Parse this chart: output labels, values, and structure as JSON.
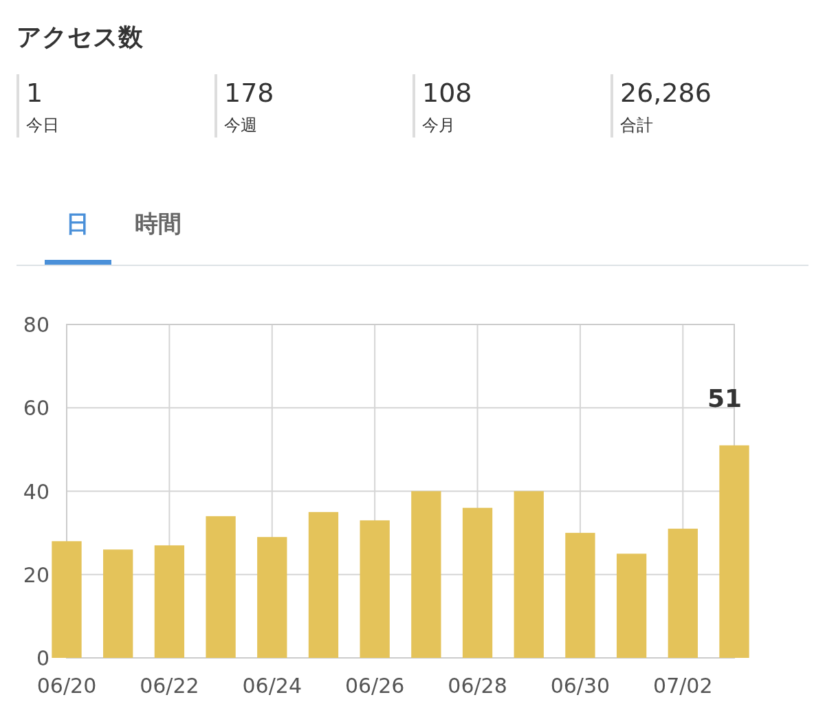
{
  "chart_data": {
    "type": "bar",
    "title": "アクセス数",
    "annotations": [
      "1",
      "今日",
      "178",
      "今週",
      "108",
      "今月",
      "26,286",
      "合計",
      "日",
      "時間"
    ],
    "x": [
      "--06-20",
      "--06-21",
      "--06-22",
      "--06-23",
      "--06-24",
      "--06-25",
      "--06-26",
      "--06-27",
      "--06-28",
      "--06-29",
      "--06-30",
      "--07-01",
      "--07-02",
      "--07-03"
    ],
    "values": [
      28,
      26,
      27,
      34,
      29,
      35,
      33,
      40,
      36,
      40,
      30,
      25,
      31,
      51
    ],
    "value_labels": [
      null,
      null,
      null,
      null,
      null,
      null,
      null,
      null,
      null,
      null,
      null,
      null,
      null,
      "51"
    ],
    "color": "#e4c35a",
    "xlim": [
      "--06-20",
      "--07-03"
    ],
    "xticks": [
      {
        "value": "--06-20",
        "label": "06/20"
      },
      {
        "value": "--06-22",
        "label": "06/22"
      },
      {
        "value": "--06-24",
        "label": "06/24"
      },
      {
        "value": "--06-26",
        "label": "06/26"
      },
      {
        "value": "--06-28",
        "label": "06/28"
      },
      {
        "value": "--06-30",
        "label": "06/30"
      },
      {
        "value": "--07-02",
        "label": "07/02"
      }
    ],
    "ylim": [
      0,
      80
    ],
    "yticks": [
      0,
      20,
      40,
      60,
      80
    ],
    "grid": true
  }
}
